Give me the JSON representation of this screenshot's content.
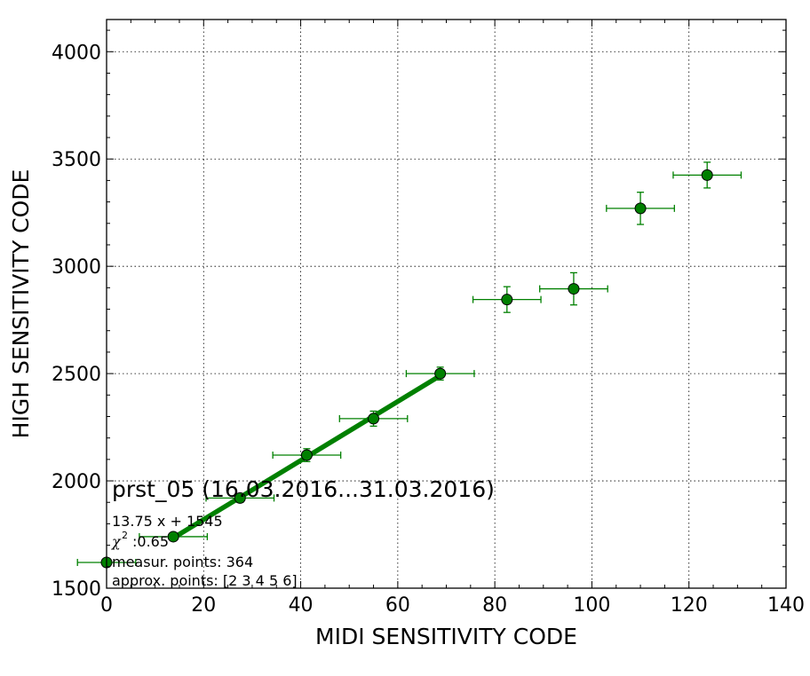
{
  "chart_data": {
    "type": "scatter",
    "title": "prst_05 (16.03.2016...31.03.2016)",
    "xlabel": "MIDI SENSITIVITY CODE",
    "ylabel": "HIGH SENSITIVITY CODE",
    "xlim": [
      0,
      140
    ],
    "ylim": [
      1500,
      4150
    ],
    "xticks": [
      0,
      20,
      40,
      60,
      80,
      100,
      120,
      140
    ],
    "yticks": [
      1500,
      2000,
      2500,
      3000,
      3500,
      4000
    ],
    "grid": true,
    "grid_style": "dotted",
    "color": "#008000",
    "series": [
      {
        "marker": "circle",
        "points": [
          {
            "x": 0,
            "y": 1620,
            "xerr": 6,
            "yerr": 15
          },
          {
            "x": 13.75,
            "y": 1740,
            "xerr": 7,
            "yerr": 15
          },
          {
            "x": 27.5,
            "y": 1920,
            "xerr": 7,
            "yerr": 20
          },
          {
            "x": 41.25,
            "y": 2120,
            "xerr": 7,
            "yerr": 30
          },
          {
            "x": 55,
            "y": 2290,
            "xerr": 7,
            "yerr": 35
          },
          {
            "x": 68.75,
            "y": 2500,
            "xerr": 7,
            "yerr": 30
          },
          {
            "x": 82.5,
            "y": 2845,
            "xerr": 7,
            "yerr": 60
          },
          {
            "x": 96.25,
            "y": 2895,
            "xerr": 7,
            "yerr": 75
          },
          {
            "x": 110,
            "y": 3270,
            "xerr": 7,
            "yerr": 75
          },
          {
            "x": 123.75,
            "y": 3425,
            "xerr": 7,
            "yerr": 60
          }
        ]
      }
    ],
    "fit": {
      "slope": 13.75,
      "intercept": 1545,
      "x_range": [
        13.75,
        68.75
      ],
      "line_width": "thick"
    },
    "annotations": {
      "equation": "13.75 x + 1545",
      "chi_symbol": "χ",
      "chi_exponent": "2",
      "chi_value": ":0.65",
      "measur_points": "measur. points: 364",
      "approx_points": "approx. points: [2 3 4 5 6]"
    }
  }
}
